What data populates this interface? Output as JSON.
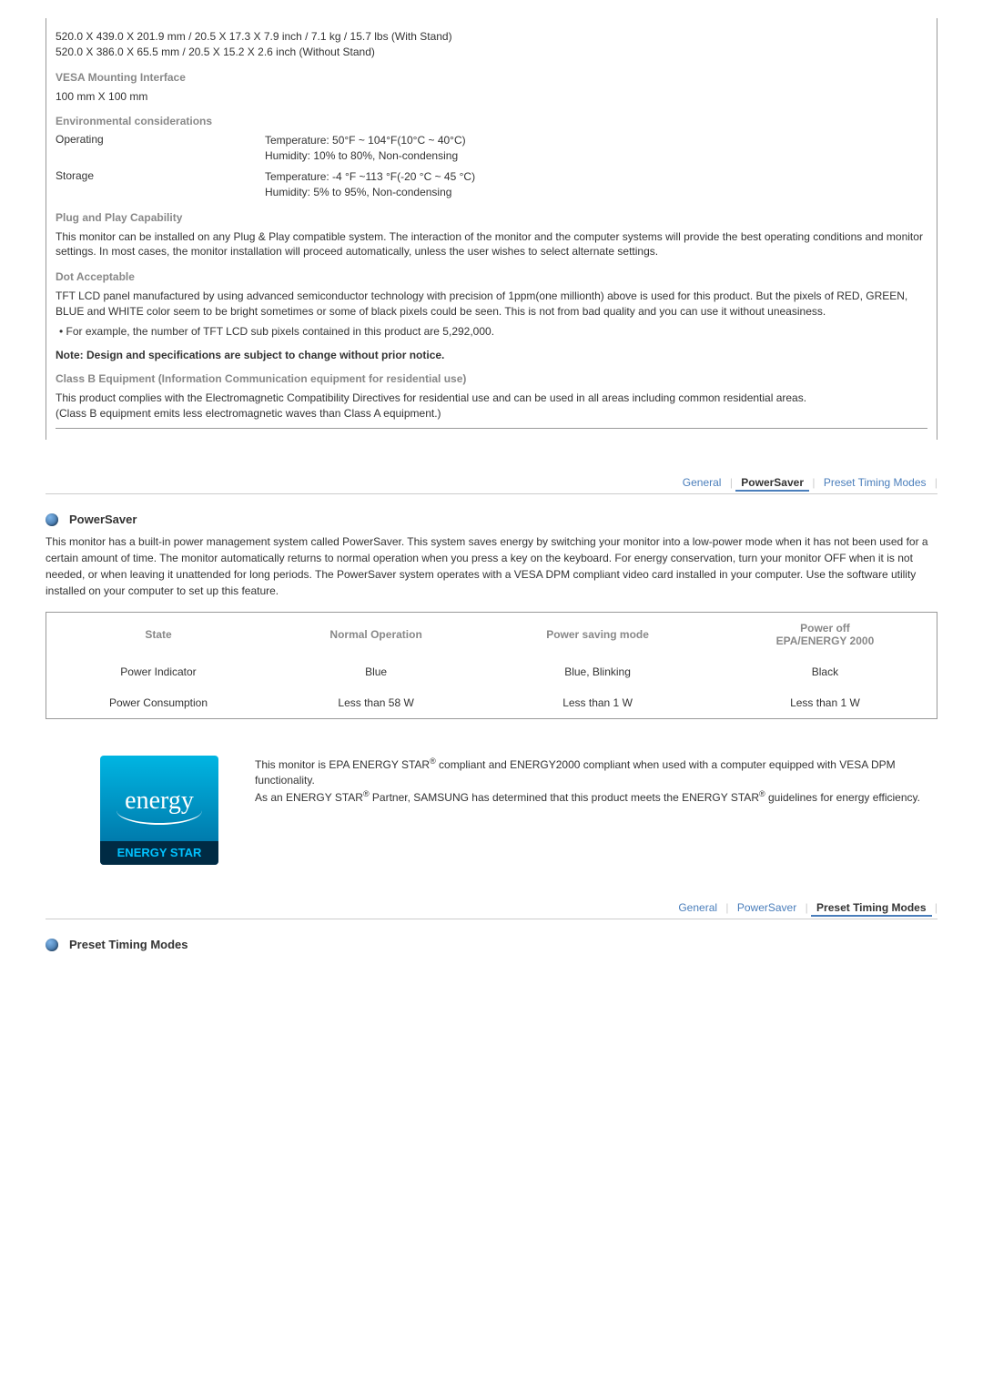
{
  "spec": {
    "dims1": "520.0 X 439.0 X 201.9 mm / 20.5 X 17.3 X 7.9 inch / 7.1 kg / 15.7 lbs (With Stand)",
    "dims2": "520.0 X 386.0 X 65.5 mm / 20.5 X 15.2 X 2.6 inch (Without Stand)",
    "vesa_heading": "VESA Mounting Interface",
    "vesa_value": "100 mm X 100 mm",
    "env_heading": "Environmental considerations",
    "operating_label": "Operating",
    "operating_temp": "Temperature: 50°F ~ 104°F(10°C ~ 40°C)",
    "operating_humidity": "Humidity: 10% to 80%, Non-condensing",
    "storage_label": "Storage",
    "storage_temp": "Temperature: -4 °F ~113 °F(-20 °C ~ 45 °C)",
    "storage_humidity": "Humidity: 5% to 95%, Non-condensing",
    "plug_heading": "Plug and Play Capability",
    "plug_body": "This monitor can be installed on any Plug & Play compatible system. The interaction of the monitor and the computer systems will provide the best operating conditions and monitor settings. In most cases, the monitor installation will proceed automatically, unless the user wishes to select alternate settings.",
    "dot_heading": "Dot Acceptable",
    "dot_body": "TFT LCD panel manufactured by using advanced semiconductor technology with precision of 1ppm(one millionth) above is used for this product. But the pixels of RED, GREEN, BLUE and WHITE color seem to be bright sometimes or some of black pixels could be seen. This is not from bad quality and you can use it without uneasiness.",
    "dot_bullet": "For example, the number of TFT LCD sub pixels contained in this product are 5,292,000.",
    "note_bold": "Note: Design and specifications are subject to change without prior notice.",
    "class_b_heading": "Class B Equipment (Information Communication equipment for residential use)",
    "class_b_body1": "This product complies with the Electromagnetic Compatibility Directives for residential use and can be used in all areas including common residential areas.",
    "class_b_body2": "(Class B equipment emits less electromagnetic waves than Class A equipment.)"
  },
  "tabs1": {
    "general": "General",
    "powersaver": "PowerSaver",
    "preset": "Preset Timing Modes"
  },
  "powersaver": {
    "title": "PowerSaver",
    "body": "This monitor has a built-in power management system called PowerSaver. This system saves energy by switching your monitor into a low-power mode when it has not been used for a certain amount of time. The monitor automatically returns to normal operation when you press a key on the keyboard. For energy conservation, turn your monitor OFF when it is not needed, or when leaving it unattended for long periods. The PowerSaver system operates with a VESA DPM compliant video card installed in your computer. Use the software utility installed on your computer to set up this feature."
  },
  "power_table": {
    "headers": [
      "State",
      "Normal Operation",
      "Power saving mode",
      "Power off\nEPA/ENERGY 2000"
    ],
    "rows": [
      [
        "Power Indicator",
        "Blue",
        "Blue, Blinking",
        "Black"
      ],
      [
        "Power Consumption",
        "Less than 58 W",
        "Less than 1 W",
        "Less than 1 W"
      ]
    ]
  },
  "energy": {
    "logo_script": "energy",
    "logo_band": "ENERGY STAR",
    "line1a": "This monitor is EPA ENERGY STAR",
    "line1b": " compliant and ENERGY2000 compliant when used with a computer equipped with VESA DPM functionality.",
    "line2a": "As an ENERGY STAR",
    "line2b": " Partner, SAMSUNG has determined that this product meets the ENERGY STAR",
    "line2c": " guidelines for energy efficiency."
  },
  "tabs2": {
    "general": "General",
    "powersaver": "PowerSaver",
    "preset": "Preset Timing Modes"
  },
  "preset": {
    "title": "Preset Timing Modes"
  },
  "colors": {
    "heading_gray": "#888888",
    "link_blue": "#4a7ebb"
  }
}
